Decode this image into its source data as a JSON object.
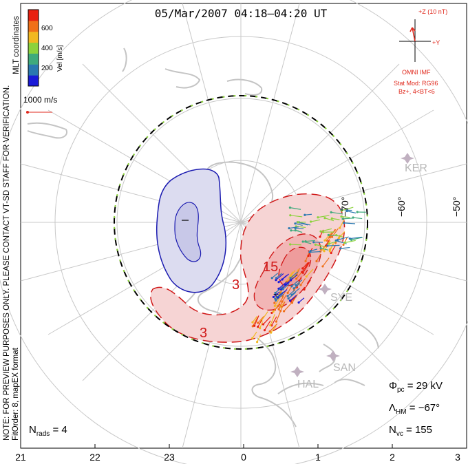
{
  "title": "05/Mar/2007 04:18–04:20 UT",
  "side_note": {
    "line1": "NOTE: FOR PREVIEW PURPOSES ONLY. PLEASE CONTACT VT-SD STAFF FOR VERIFICATION.",
    "line2": "FitOrder: 8,  mapEX format",
    "coords": "MLT coordinates"
  },
  "colorbar": {
    "title": "Vel [m/s]",
    "ticks": [
      "200",
      "400",
      "600"
    ],
    "colors": [
      "#1a1ad8",
      "#2a78b0",
      "#3faa7c",
      "#8cd23c",
      "#f2b820",
      "#f07018",
      "#e82010"
    ]
  },
  "reference_vector": {
    "label": "1000 m/s",
    "color": "#e0281c"
  },
  "imf": {
    "z_label": "+Z (10 nT)",
    "y_label": "+Y",
    "source": "OMNI IMF",
    "model": "Stat Mod: RG96",
    "condition": "Bz+, 4<BT<6",
    "color": "#e0281c"
  },
  "stations": [
    "KER",
    "SYE",
    "SAN",
    "HAL"
  ],
  "lat_labels": [
    "−70°",
    "−60°",
    "−50°"
  ],
  "contour_labels": [
    "3",
    "15",
    "3"
  ],
  "stats": {
    "phi_sym": "Φ",
    "phi_sub": "pc",
    "phi_val": " = 29 kV",
    "lam_sym": "Λ",
    "lam_sub": "HM",
    "lam_val": " = −67°",
    "nvc_sym": "N",
    "nvc_sub": "vc",
    "nvc_val": " = 155",
    "nrads_sym": "N",
    "nrads_sub": "rads",
    "nrads_val": " = 4"
  },
  "chart_data": {
    "type": "polar-convection-map",
    "title": "05/Mar/2007 04:18–04:20 UT",
    "xlabel": "",
    "ylabel": "",
    "mlt_ticks": [
      "21",
      "22",
      "23",
      "0",
      "1",
      "2",
      "3"
    ],
    "latitude_labels": [
      "−70°",
      "−60°",
      "−50°"
    ],
    "cross_polar_cap_potential_kV": 29,
    "heppner_maynard_boundary_deg": -67,
    "vector_count": 155,
    "radar_count": 4,
    "velocity_colorbar_range_m_s": [
      0,
      700
    ],
    "reference_velocity_m_s": 1000,
    "potential_contours": [
      {
        "sign": "positive",
        "label": "3",
        "color": "#d01818"
      },
      {
        "sign": "positive",
        "label": "15",
        "color": "#d01818"
      },
      {
        "sign": "positive",
        "label": "3",
        "color": "#d01818"
      },
      {
        "sign": "negative",
        "label": "",
        "color": "#1a1ab0"
      }
    ]
  }
}
